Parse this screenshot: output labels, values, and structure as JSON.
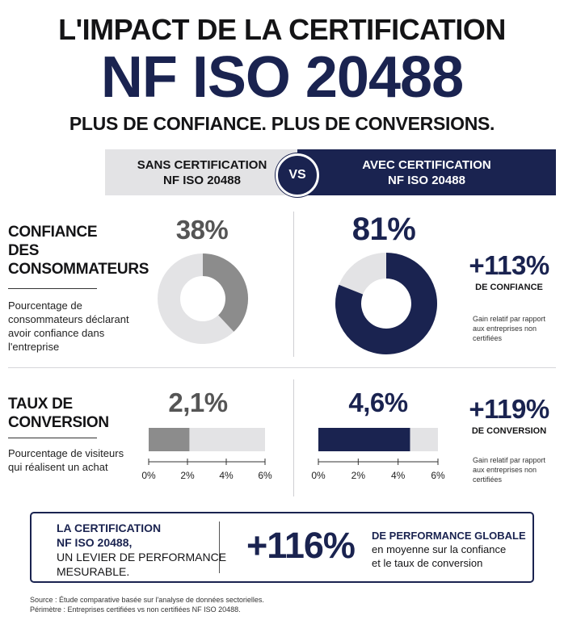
{
  "header": {
    "title_line1": "L'IMPACT DE LA CERTIFICATION",
    "title_line2": "NF ISO 20488",
    "tagline": "PLUS DE CONFIANCE. PLUS DE CONVERSIONS."
  },
  "comparison": {
    "left_label_1": "SANS CERTIFICATION",
    "left_label_2": "NF ISO 20488",
    "vs": "VS",
    "right_label_1": "AVEC CERTIFICATION",
    "right_label_2": "NF ISO 20488"
  },
  "confidence": {
    "title_1": "CONFIANCE",
    "title_2": "DES",
    "title_3": "CONSOMMATEURS",
    "desc_1": "Pourcentage de",
    "desc_2": "consommateurs déclarant",
    "desc_3": "avoir confiance dans",
    "desc_4": "l'entreprise",
    "without_value": "38%",
    "with_value": "81%",
    "without_fraction": 0.38,
    "with_fraction": 0.81,
    "gain": "+113%",
    "gain_label": "DE CONFIANCE",
    "gain_note_1": "Gain relatif par rapport",
    "gain_note_2": "aux entreprises non",
    "gain_note_3": "certifiées"
  },
  "conversion": {
    "title_1": "TAUX DE",
    "title_2": "CONVERSION",
    "desc_1": "Pourcentage de visiteurs",
    "desc_2": "qui réalisent un achat",
    "without_value": "2,1%",
    "with_value": "4,6%",
    "without_number": 2.1,
    "with_number": 4.6,
    "axis_max": 6,
    "ticks": [
      "0%",
      "2%",
      "4%",
      "6%"
    ],
    "gain": "+119%",
    "gain_label": "DE CONVERSION",
    "gain_note_1": "Gain relatif par rapport",
    "gain_note_2": "aux entreprises non",
    "gain_note_3": "certifiées"
  },
  "summary": {
    "left_1": "LA CERTIFICATION",
    "left_2": "NF ISO 20488,",
    "left_3": "UN LEVIER DE PERFORMANCE",
    "left_4": "MESURABLE.",
    "big": "+116%",
    "right_1": "DE PERFORMANCE GLOBALE",
    "right_2": "en moyenne sur la confiance",
    "right_3": "et le taux de conversion"
  },
  "footer": {
    "source": "Source : Étude comparative basée sur l'analyse de données sectorielles.",
    "scope": "Périmètre : Entreprises certifiées vs non certifiées NF ISO 20488."
  },
  "colors": {
    "navy": "#1a2350",
    "grey_fill": "#8c8c8c",
    "light_grey": "#e3e3e5"
  }
}
